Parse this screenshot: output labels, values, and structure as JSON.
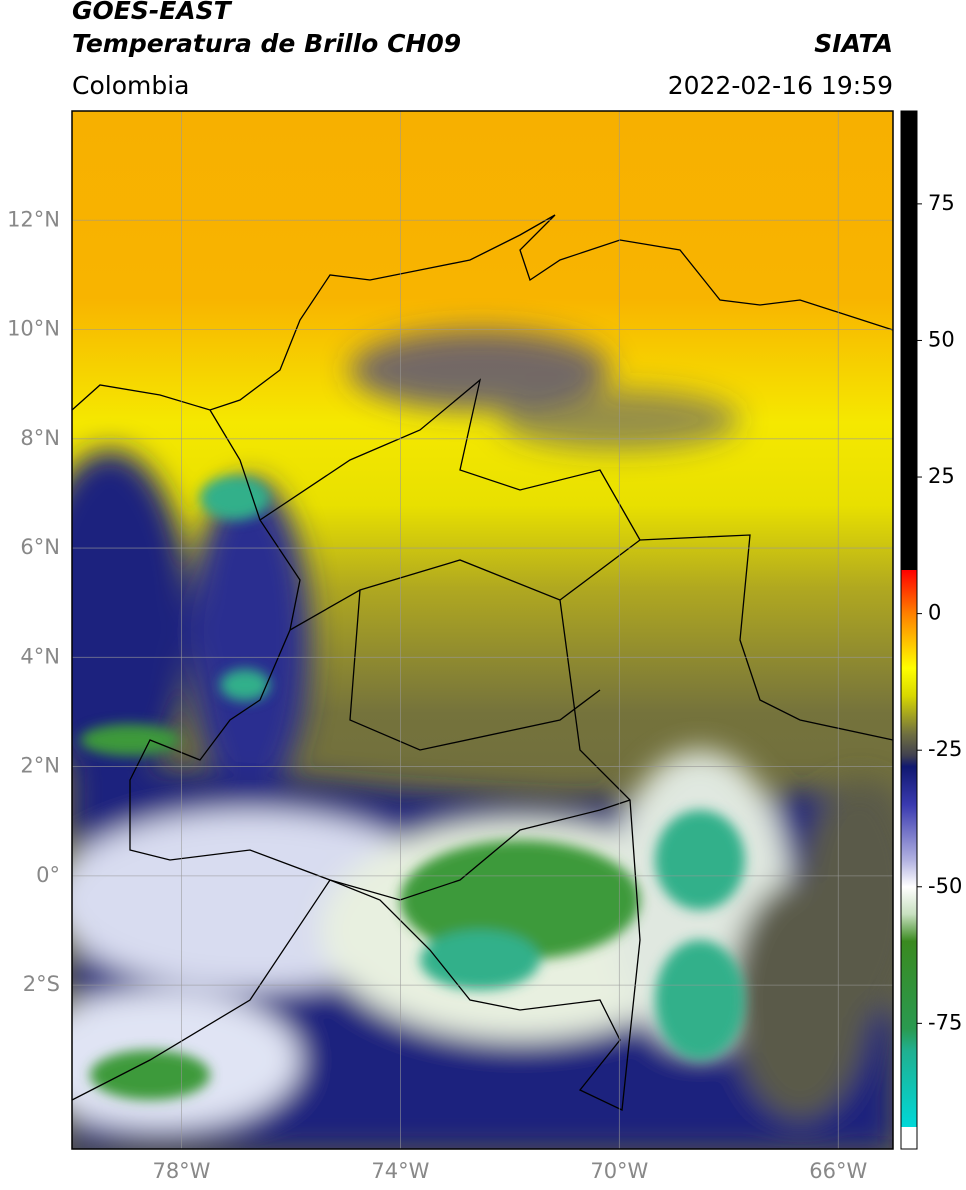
{
  "header": {
    "title": "GOES-EAST",
    "subtitle": "Temperatura de Brillo CH09",
    "region": "Colombia",
    "source": "SIATA",
    "datetime": "2022-02-16 19:59"
  },
  "map": {
    "lon_range": [
      -80,
      -65
    ],
    "lat_range": [
      -5,
      14
    ],
    "grid": true,
    "lon_ticks": [
      {
        "value": -78,
        "label": "78°W"
      },
      {
        "value": -74,
        "label": "74°W"
      },
      {
        "value": -70,
        "label": "70°W"
      },
      {
        "value": -66,
        "label": "66°W"
      }
    ],
    "lat_ticks": [
      {
        "value": 12,
        "label": "12°N"
      },
      {
        "value": 10,
        "label": "10°N"
      },
      {
        "value": 8,
        "label": "8°N"
      },
      {
        "value": 6,
        "label": "6°N"
      },
      {
        "value": 4,
        "label": "4°N"
      },
      {
        "value": 2,
        "label": "2°N"
      },
      {
        "value": 0,
        "label": "0°"
      },
      {
        "value": -2,
        "label": "2°S"
      }
    ]
  },
  "colorbar": {
    "range": [
      -98,
      92
    ],
    "ticks": [
      75,
      50,
      25,
      0,
      -25,
      -50,
      -75
    ],
    "colormap": [
      [
        -98,
        "#ffffff"
      ],
      [
        -94,
        "#ffffff"
      ],
      [
        -94,
        "#00d8d8"
      ],
      [
        -80,
        "#20b090"
      ],
      [
        -76,
        "#2a9a50"
      ],
      [
        -60,
        "#3a8a20"
      ],
      [
        -55,
        "#c8e0c0"
      ],
      [
        -50,
        "#ffffff"
      ],
      [
        -45,
        "#b0b0e0"
      ],
      [
        -35,
        "#3a3ab0"
      ],
      [
        -28,
        "#101870"
      ],
      [
        -26,
        "#404050"
      ],
      [
        -22,
        "#707040"
      ],
      [
        -15,
        "#d8d800"
      ],
      [
        -10,
        "#ffff00"
      ],
      [
        -5,
        "#ffc000"
      ],
      [
        0,
        "#ff8000"
      ],
      [
        8,
        "#ff0000"
      ],
      [
        8,
        "#000000"
      ],
      [
        92,
        "#000000"
      ]
    ]
  }
}
